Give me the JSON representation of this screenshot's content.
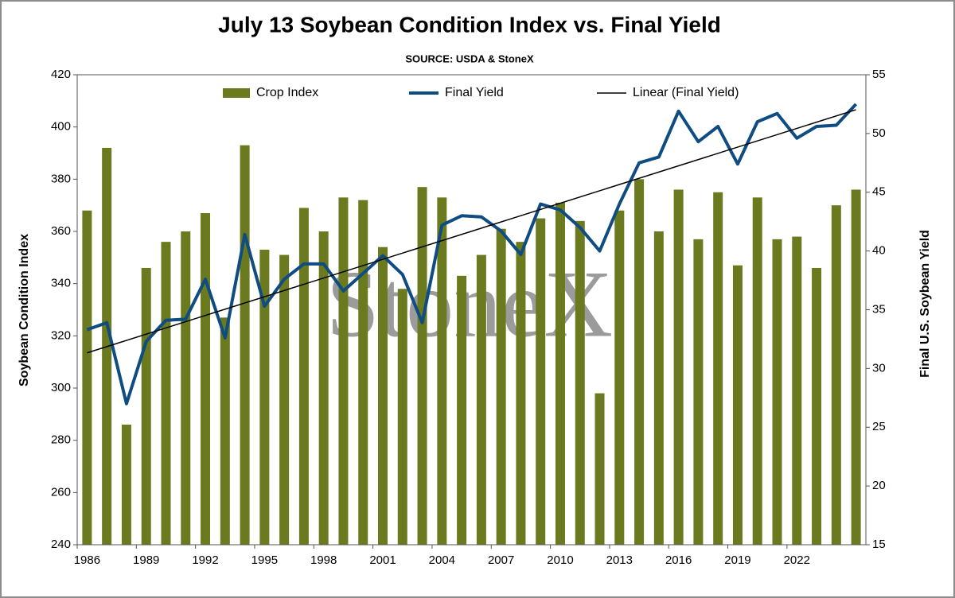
{
  "chart_data": {
    "type": "bar",
    "title": "July 13 Soybean Condition Index vs. Final Yield",
    "subtitle": "SOURCE: USDA & StoneX",
    "watermark": "StoneX",
    "y_label": "Soybean Condition Index",
    "y2_label": "Final U.S. Soybean Yield",
    "categories": [
      "1986",
      null,
      null,
      "1989",
      null,
      null,
      "1992",
      null,
      null,
      "1995",
      null,
      null,
      "1998",
      null,
      null,
      "2001",
      null,
      null,
      "2004",
      null,
      null,
      "2007",
      null,
      null,
      "2010",
      null,
      null,
      "2013",
      null,
      null,
      "2016",
      null,
      null,
      "2019",
      null,
      null,
      "2022",
      null,
      null,
      null
    ],
    "series": [
      {
        "name": "Crop Index",
        "type": "bar",
        "color": "#6b7a1e",
        "values": [
          368,
          392,
          286,
          346,
          356,
          360,
          367,
          327,
          393,
          353,
          351,
          369,
          360,
          373,
          372,
          354,
          338,
          377,
          373,
          343,
          351,
          361,
          356,
          365,
          371,
          364,
          298,
          368,
          380,
          360,
          376,
          357,
          375,
          347,
          373,
          357,
          358,
          346,
          370,
          376
        ]
      },
      {
        "name": "Final Yield",
        "type": "line",
        "axis": "y2",
        "color": "#0f4c81",
        "values": [
          33.3,
          33.9,
          27.0,
          32.3,
          34.1,
          34.2,
          37.6,
          32.6,
          41.4,
          35.3,
          37.6,
          38.9,
          38.9,
          36.6,
          38.1,
          39.6,
          38.0,
          33.9,
          42.2,
          43.0,
          42.9,
          41.7,
          39.7,
          44.0,
          43.5,
          42.0,
          40.0,
          44.0,
          47.5,
          48.0,
          51.9,
          49.3,
          50.6,
          47.4,
          51.0,
          51.7,
          49.6,
          50.6,
          50.7,
          52.5
        ]
      }
    ],
    "trendline": {
      "name": "Linear (Final Yield)",
      "color": "#000000"
    },
    "ylim": [
      240,
      420
    ],
    "yticks": [
      240,
      260,
      280,
      300,
      320,
      340,
      360,
      380,
      400,
      420
    ],
    "y2lim": [
      15,
      55
    ],
    "y2ticks": [
      15,
      20,
      25,
      30,
      35,
      40,
      45,
      50,
      55
    ],
    "grid": false,
    "legend": "top"
  }
}
